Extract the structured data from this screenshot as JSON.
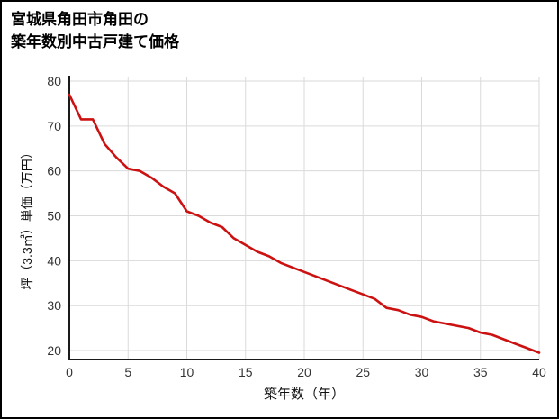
{
  "page": {
    "background": "#ffffff",
    "border_color": "#000000"
  },
  "chart_data": {
    "type": "line",
    "title_line1": "宮城県角田市角田の",
    "title_line2": "築年数別中古戸建て価格",
    "xlabel": "築年数（年）",
    "ylabel": "坪（3.3㎡）単価（万円）",
    "x": [
      0,
      1,
      2,
      3,
      4,
      5,
      6,
      7,
      8,
      9,
      10,
      11,
      12,
      13,
      14,
      15,
      16,
      17,
      18,
      19,
      20,
      21,
      22,
      23,
      24,
      25,
      26,
      27,
      28,
      29,
      30,
      31,
      32,
      33,
      34,
      35,
      36,
      37,
      38,
      39,
      40
    ],
    "values": [
      77,
      71.5,
      71.5,
      66,
      63,
      60.5,
      60,
      58.5,
      56.5,
      55,
      51,
      50,
      48.5,
      47.5,
      45,
      43.5,
      42,
      41,
      39.5,
      38.5,
      37.5,
      36.5,
      35.5,
      34.5,
      33.5,
      32.5,
      31.5,
      29.5,
      29,
      28,
      27.5,
      26.5,
      26,
      25.5,
      25,
      24,
      23.5,
      22.5,
      21.5,
      20.5,
      19.5
    ],
    "xticks": [
      0,
      5,
      10,
      15,
      20,
      25,
      30,
      35,
      40
    ],
    "yticks": [
      20,
      30,
      40,
      50,
      60,
      70,
      80
    ],
    "xlim": [
      0,
      40
    ],
    "ylim": [
      18,
      80
    ],
    "grid": true,
    "legend": "none",
    "line_color": "#cc1111",
    "grid_color": "#dadada",
    "axis_color": "#1a1a1a",
    "tick_color": "#333333"
  }
}
